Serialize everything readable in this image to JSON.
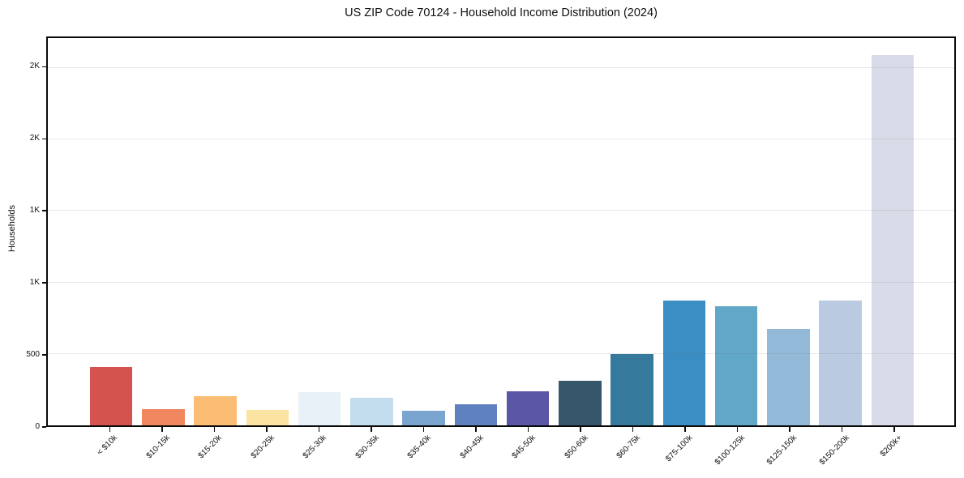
{
  "chart_data": {
    "type": "bar",
    "title": "US ZIP Code 70124 - Household Income Distribution (2024)",
    "xlabel": "",
    "ylabel": "Households",
    "categories": [
      "< $10k",
      "$10-15k",
      "$15-20k",
      "$20-25k",
      "$25-30k",
      "$30-35k",
      "$35-40k",
      "$40-45k",
      "$45-50k",
      "$50-60k",
      "$60-75k",
      "$75-100k",
      "$100-125k",
      "$125-150k",
      "$150-200k",
      "$200k+"
    ],
    "values": [
      410,
      115,
      205,
      110,
      235,
      195,
      100,
      150,
      240,
      310,
      500,
      875,
      835,
      675,
      875,
      2590
    ],
    "bar_colors": [
      "#d5534e",
      "#f0875f",
      "#fbbd73",
      "#fbe3a2",
      "#e8f1f7",
      "#c3ddee",
      "#79a5d0",
      "#6081c0",
      "#5b56a6",
      "#35566b",
      "#35799d",
      "#3a8ec4",
      "#60a7c8",
      "#93b9d8",
      "#b9cae1",
      "#d9dbe8"
    ],
    "ylim": [
      0,
      2710
    ],
    "yticks": [
      {
        "value": 0,
        "label": "0"
      },
      {
        "value": 500,
        "label": "500"
      },
      {
        "value": 1000,
        "label": "1K"
      },
      {
        "value": 1500,
        "label": "1K"
      },
      {
        "value": 2000,
        "label": "2K"
      },
      {
        "value": 2500,
        "label": "2K"
      }
    ],
    "grid": "horizontal",
    "grid_color": "#ececec",
    "legend": "none",
    "bar_width_fraction": 0.82
  }
}
